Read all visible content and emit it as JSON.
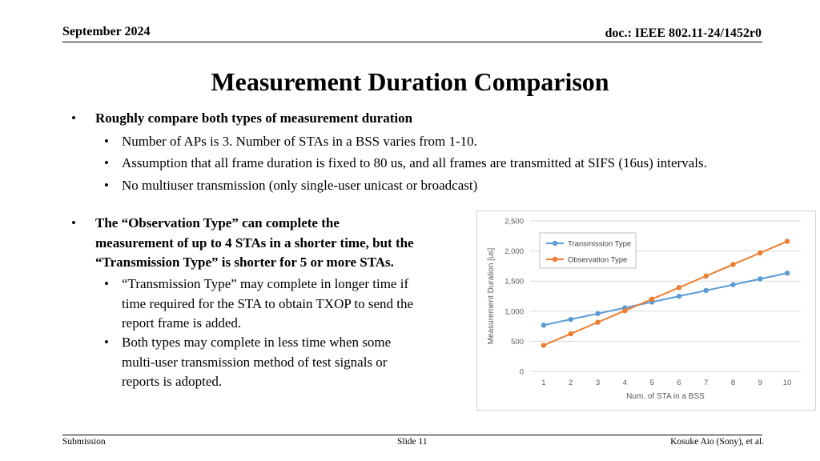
{
  "header": {
    "date": "September 2024",
    "doc_id": "doc.: IEEE 802.11-24/1452r0"
  },
  "title": "Measurement Duration Comparison",
  "bullets_top": {
    "main": "Roughly compare both types of measurement duration",
    "subs": [
      "Number of APs is 3. Number of STAs in a BSS varies from 1-10.",
      "Assumption that all frame duration is fixed to 80 us, and all frames are transmitted at SIFS (16us) intervals.",
      "No multiuser transmission (only single-user unicast or broadcast)"
    ]
  },
  "bullets_left": {
    "main_lines": [
      "The “Observation Type” can complete the",
      "measurement of up to 4 STAs in a shorter time, but the",
      "“Transmission Type” is shorter for 5 or more STAs."
    ],
    "sub1_lines": [
      "“Transmission Type” may complete in longer time if",
      "time required for the STA to obtain TXOP to send the",
      "report frame is added."
    ],
    "sub2_lines": [
      "Both types may complete in less time when some",
      "multi-user transmission method of test signals or",
      "reports is adopted."
    ]
  },
  "chart_data": {
    "type": "line",
    "x": [
      1,
      2,
      3,
      4,
      5,
      6,
      7,
      8,
      9,
      10
    ],
    "series": [
      {
        "name": "Transmission Type",
        "color": "#5b9bd5",
        "values": [
          768,
          864,
          960,
          1056,
          1152,
          1248,
          1344,
          1440,
          1536,
          1632
        ]
      },
      {
        "name": "Observation Type",
        "color": "#ed7d31",
        "values": [
          432,
          624,
          816,
          1008,
          1200,
          1392,
          1584,
          1776,
          1968,
          2160
        ]
      }
    ],
    "xlabel": "Num. of STA in a BSS",
    "ylabel": "Measurement Duration [us]",
    "ylim": [
      0,
      2500
    ],
    "yticks": [
      0,
      500,
      1000,
      1500,
      2000,
      2500
    ],
    "ytick_labels": [
      "0",
      "500",
      "1,000",
      "1,500",
      "2,000",
      "2,500"
    ],
    "xtick_labels": [
      "1",
      "2",
      "3",
      "4",
      "5",
      "6",
      "7",
      "8",
      "9",
      "10"
    ],
    "grid": "horizontal",
    "legend": "top-left"
  },
  "footer": {
    "left": "Submission",
    "center": "Slide 11",
    "right": "Kosuke Aio (Sony), et al."
  }
}
